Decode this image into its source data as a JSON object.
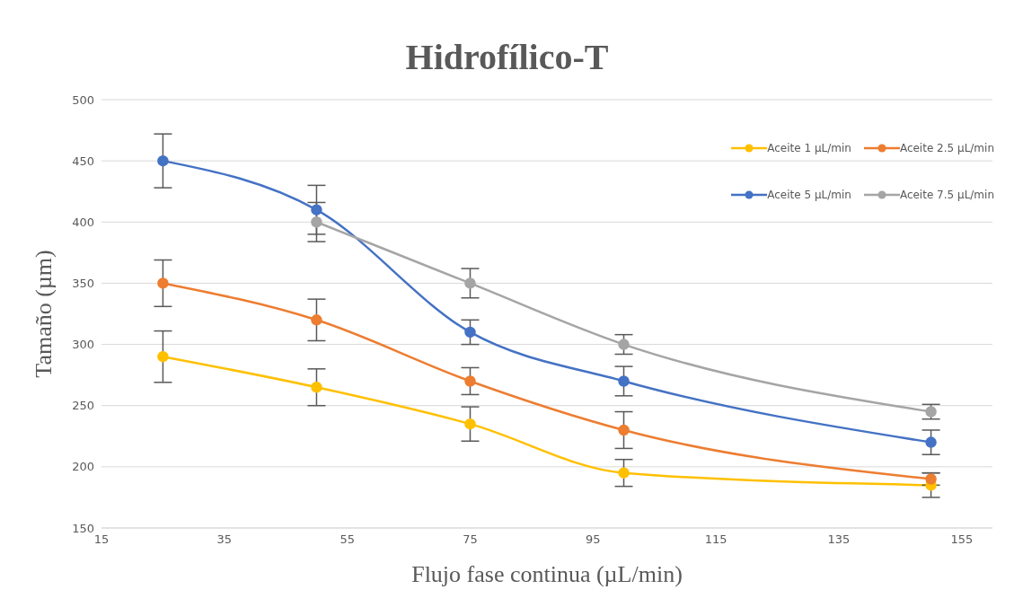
{
  "chart_data": {
    "type": "line",
    "title": "Hidrofílico-T",
    "xlabel": "Flujo  fase continua (µL/min)",
    "ylabel": "Tamaño (µm)",
    "x": [
      25,
      50,
      75,
      100,
      150
    ],
    "series": [
      {
        "name": "Aceite 1 µL/min",
        "color": "#ffc000",
        "values": [
          290,
          265,
          235,
          195,
          185
        ],
        "errors": [
          21,
          15,
          14,
          11,
          10
        ]
      },
      {
        "name": "Aceite 2.5 µL/min",
        "color": "#ed7d31",
        "values": [
          350,
          320,
          270,
          230,
          190
        ],
        "errors": [
          19,
          17,
          11,
          15,
          5
        ]
      },
      {
        "name": "Aceite 5 µL/min",
        "color": "#4472c4",
        "values": [
          450,
          410,
          310,
          270,
          220
        ],
        "errors": [
          22,
          20,
          10,
          12,
          10
        ]
      },
      {
        "name": "Aceite 7.5 µL/min",
        "color": "#a5a5a5",
        "values": [
          null,
          400,
          350,
          300,
          245
        ],
        "errors": [
          null,
          16,
          12,
          8,
          6
        ]
      }
    ],
    "xlim": [
      15,
      160
    ],
    "xticks": [
      15,
      35,
      55,
      75,
      95,
      115,
      135,
      155
    ],
    "ylim": [
      150,
      500
    ],
    "yticks": [
      150,
      200,
      250,
      300,
      350,
      400,
      450,
      500
    ],
    "grid": "y",
    "legend": "top right",
    "marker": "circle",
    "line_style": "solid"
  }
}
